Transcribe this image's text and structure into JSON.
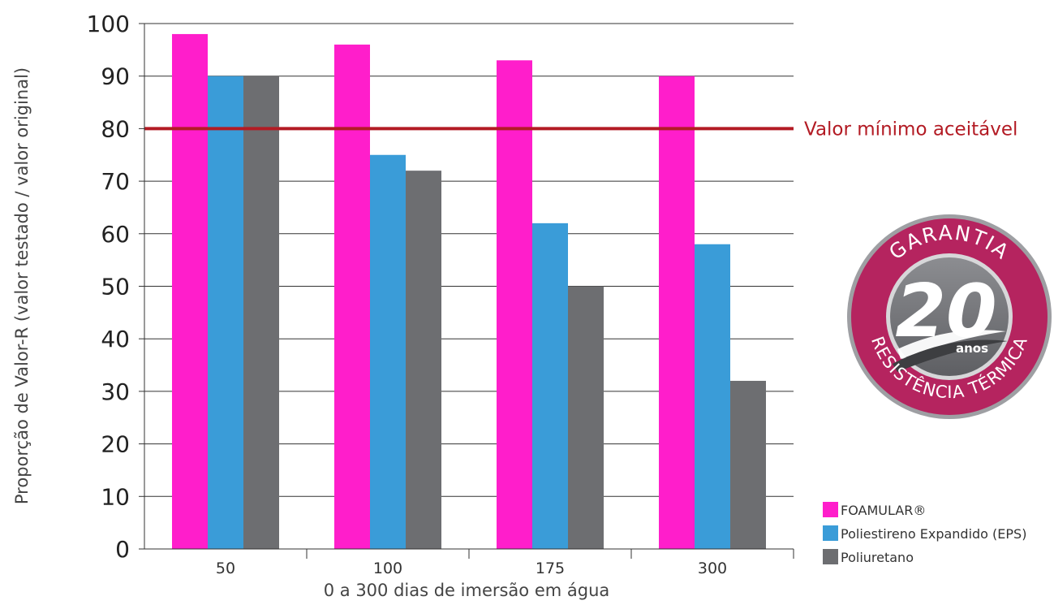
{
  "chart_data": {
    "type": "bar",
    "xlabel": "0 a 300 dias de imersão em água",
    "ylabel": "Proporção de Valor-R (valor testado / valor original)",
    "ylim": [
      0,
      100
    ],
    "yticks": [
      0,
      10,
      20,
      30,
      40,
      50,
      60,
      70,
      80,
      90,
      100
    ],
    "categories": [
      "50",
      "100",
      "175",
      "300"
    ],
    "series": [
      {
        "name": "FOAMULAR®",
        "color": "#ff1ecb",
        "values": [
          98,
          96,
          93,
          90
        ]
      },
      {
        "name": "Poliestireno Expandido (EPS)",
        "color": "#3a9cd8",
        "values": [
          90,
          75,
          62,
          58
        ]
      },
      {
        "name": "Poliuretano",
        "color": "#6d6e71",
        "values": [
          90,
          72,
          50,
          32
        ]
      }
    ],
    "reference_line": {
      "value": 80,
      "label": "Valor mínimo aceitável",
      "color": "#b31b24"
    },
    "grid": true,
    "legend_position": "bottom-right"
  },
  "badge": {
    "top_text": "GARANTIA",
    "number": "20",
    "unit": "anos",
    "bottom_text": "RESISTÊNCIA TÉRMICA",
    "colors": {
      "ring": "#b5245f",
      "center": "#7b7c80"
    }
  }
}
